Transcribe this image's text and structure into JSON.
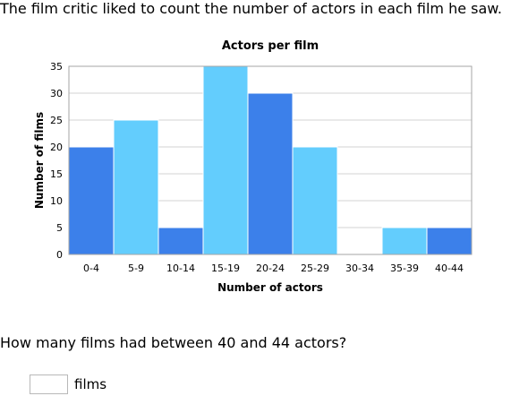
{
  "intro_text": "The film critic liked to count the number of actors in each film he saw.",
  "question_text": "How many films had between 40 and 44 actors?",
  "answer": {
    "value": "",
    "unit": "films"
  },
  "colors": {
    "dark_bar": "#3c80ea",
    "light_bar": "#63cdfd",
    "grid": "#d3d3d3",
    "axis": "#a6a6a6"
  },
  "chart_data": {
    "type": "bar",
    "title": "Actors per film",
    "xlabel": "Number of actors",
    "ylabel": "Number of films",
    "categories": [
      "0-4",
      "5-9",
      "10-14",
      "15-19",
      "20-24",
      "25-29",
      "30-34",
      "35-39",
      "40-44"
    ],
    "values": [
      20,
      25,
      5,
      35,
      30,
      20,
      0,
      5,
      5
    ],
    "bar_colors": [
      "#3c80ea",
      "#63cdfd",
      "#3c80ea",
      "#63cdfd",
      "#3c80ea",
      "#63cdfd",
      "#3c80ea",
      "#63cdfd",
      "#3c80ea"
    ],
    "ylim": [
      0,
      35
    ],
    "yticks": [
      0,
      5,
      10,
      15,
      20,
      25,
      30,
      35
    ],
    "grid": true
  }
}
